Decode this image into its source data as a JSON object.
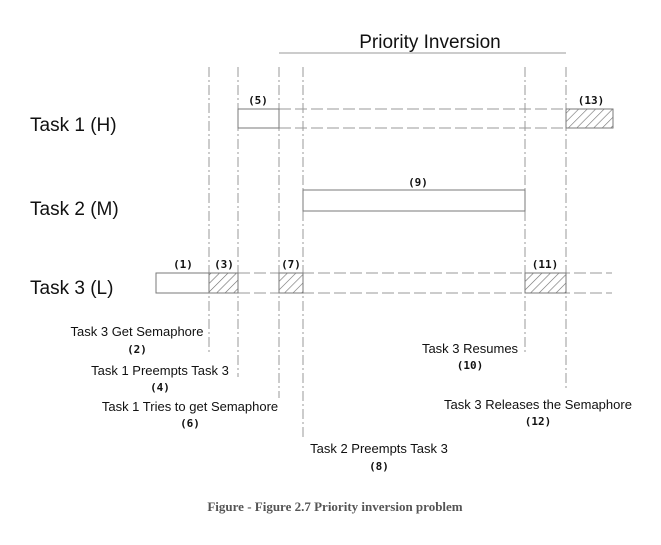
{
  "title": "Priority Inversion",
  "tasks": [
    {
      "id": "task1",
      "label": "Task 1 (H)"
    },
    {
      "id": "task2",
      "label": "Task 2 (M)"
    },
    {
      "id": "task3",
      "label": "Task 3 (L)"
    }
  ],
  "markers": {
    "m1": "(1)",
    "m3": "(3)",
    "m5": "(5)",
    "m7": "(7)",
    "m9": "(9)",
    "m11": "(11)",
    "m13": "(13)"
  },
  "events": [
    {
      "id": "e2",
      "text": "Task 3 Get Semaphore",
      "num": "(2)"
    },
    {
      "id": "e4",
      "text": "Task 1 Preempts Task 3",
      "num": "(4)"
    },
    {
      "id": "e6",
      "text": "Task 1 Tries to get Semaphore",
      "num": "(6)"
    },
    {
      "id": "e8",
      "text": "Task 2 Preempts Task 3",
      "num": "(8)"
    },
    {
      "id": "e10",
      "text": "Task 3 Resumes",
      "num": "(10)"
    },
    {
      "id": "e12",
      "text": "Task 3 Releases the Semaphore",
      "num": "(12)"
    }
  ],
  "caption": "Figure - Figure 2.7 Priority inversion problem",
  "colors": {
    "line": "#9a9a9a",
    "box": "#7a7a7a",
    "caption": "#555555"
  }
}
